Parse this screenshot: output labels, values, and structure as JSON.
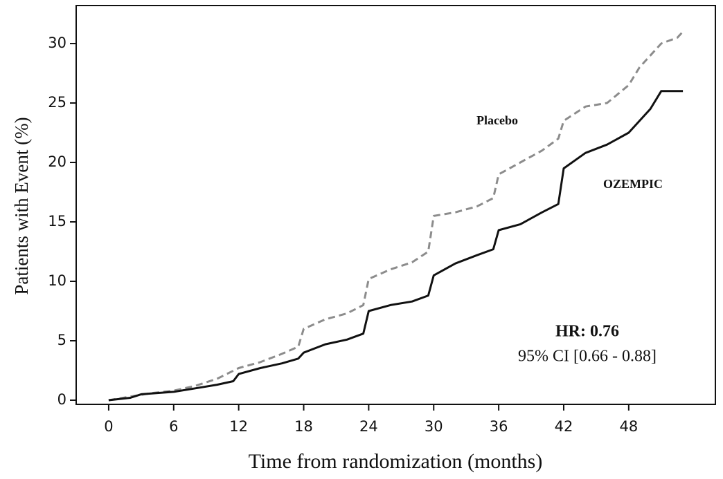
{
  "chart_data": {
    "type": "line",
    "ylabel": "Patients with Event (%)",
    "xlabel": "Time from randomization (months)",
    "xlim": [
      -3,
      56
    ],
    "ylim": [
      -0.35,
      33.2
    ],
    "xticks": [
      0,
      6,
      12,
      18,
      24,
      30,
      36,
      42,
      48
    ],
    "yticks": [
      0,
      5,
      10,
      15,
      20,
      25,
      30
    ],
    "grid": false,
    "series": [
      {
        "name": "Placebo",
        "color": "#8c8c8c",
        "style": "dashed",
        "x": [
          0,
          2,
          4,
          6,
          8,
          10,
          12,
          14,
          16,
          17.5,
          18,
          20,
          22,
          23.5,
          24,
          26,
          28,
          29.5,
          30,
          32,
          34,
          35.5,
          36,
          38,
          40,
          41.5,
          42,
          44,
          46,
          48,
          49,
          51,
          52.5,
          53
        ],
        "values": [
          0,
          0.3,
          0.6,
          0.8,
          1.2,
          1.8,
          2.7,
          3.2,
          3.9,
          4.5,
          6.0,
          6.8,
          7.3,
          8.0,
          10.2,
          11.0,
          11.6,
          12.5,
          15.5,
          15.8,
          16.3,
          17.0,
          19.0,
          20.0,
          21.0,
          22.0,
          23.5,
          24.7,
          25.0,
          26.5,
          28.0,
          30.0,
          30.5,
          31.0
        ]
      },
      {
        "name": "OZEMPIC",
        "color": "#111111",
        "style": "solid",
        "x": [
          0,
          2,
          3,
          6,
          8,
          10,
          11.5,
          12,
          14,
          16,
          17.5,
          18,
          20,
          22,
          23.5,
          24,
          26,
          28,
          29.5,
          30,
          32,
          34,
          35.5,
          36,
          38,
          40,
          41.5,
          42,
          44,
          46,
          48,
          50,
          51,
          53
        ],
        "values": [
          0,
          0.2,
          0.5,
          0.7,
          1.0,
          1.3,
          1.6,
          2.2,
          2.7,
          3.1,
          3.5,
          4.0,
          4.7,
          5.1,
          5.6,
          7.5,
          8.0,
          8.3,
          8.8,
          10.5,
          11.5,
          12.2,
          12.7,
          14.3,
          14.8,
          15.8,
          16.5,
          19.5,
          20.8,
          21.5,
          22.5,
          24.5,
          26.0,
          26.0
        ]
      }
    ],
    "annotations": [
      "HR: 0.76",
      "95% CI [0.66 - 0.88]"
    ]
  }
}
